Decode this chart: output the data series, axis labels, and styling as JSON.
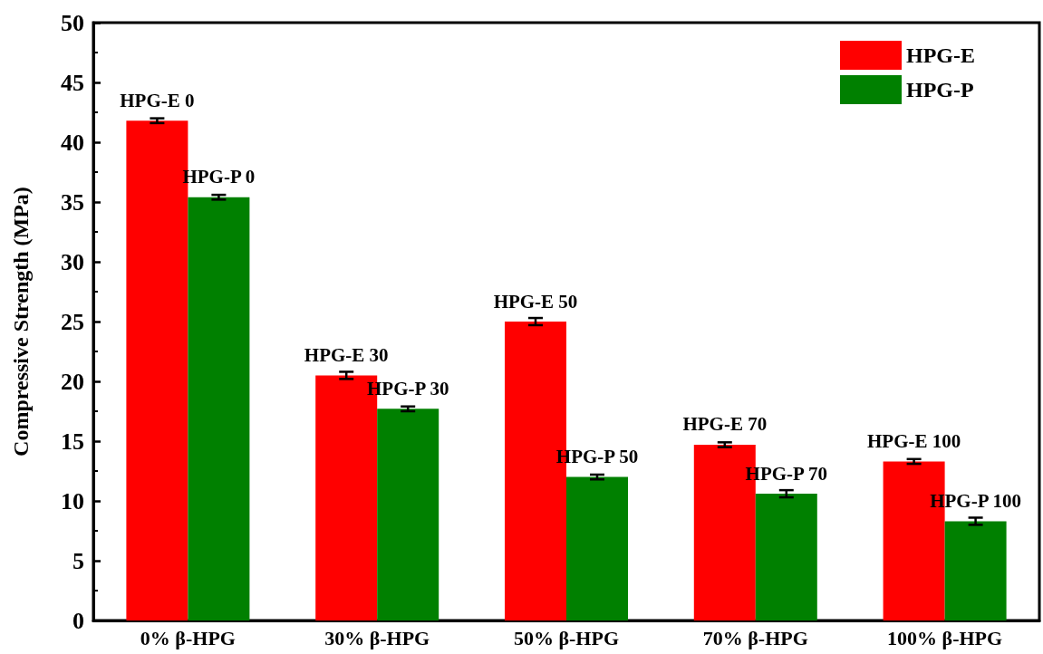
{
  "chart_data": {
    "type": "bar",
    "ylabel": "Compressive Strength (MPa)",
    "categories": [
      "0% β-HPG",
      "30% β-HPG",
      "50% β-HPG",
      "70% β-HPG",
      "100% β-HPG"
    ],
    "series": [
      {
        "name": "HPG-E",
        "color": "#ff0000",
        "values": [
          41.8,
          20.5,
          25.0,
          14.7,
          13.3
        ],
        "errors": [
          0.2,
          0.3,
          0.3,
          0.2,
          0.2
        ],
        "value_labels": [
          "HPG-E 0",
          "HPG-E 30",
          "HPG-E 50",
          "HPG-E 70",
          "HPG-E 100"
        ]
      },
      {
        "name": "HPG-P",
        "color": "#008000",
        "values": [
          35.4,
          17.7,
          12.0,
          10.6,
          8.3
        ],
        "errors": [
          0.2,
          0.2,
          0.2,
          0.3,
          0.3
        ],
        "value_labels": [
          "HPG-P 0",
          "HPG-P 30",
          "HPG-P 50",
          "HPG-P 70",
          "HPG-P 100"
        ]
      }
    ],
    "ylim": [
      0,
      50
    ],
    "yticks": [
      0,
      5,
      10,
      15,
      20,
      25,
      30,
      35,
      40,
      45,
      50
    ],
    "grid": false,
    "legend": "top right"
  }
}
